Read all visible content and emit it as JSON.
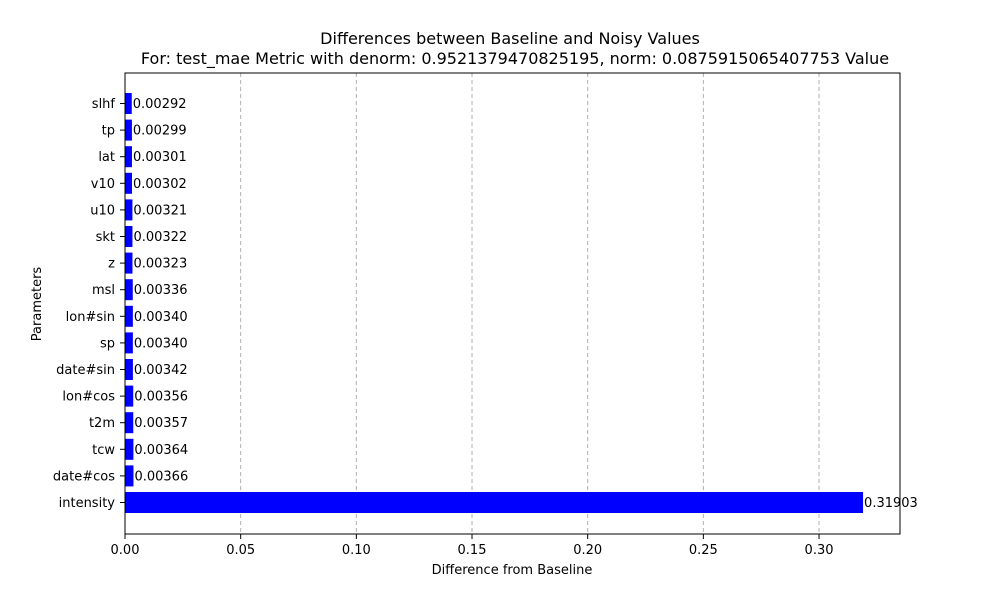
{
  "chart_data": {
    "type": "bar",
    "orientation": "horizontal",
    "title": "Differences between Baseline and Noisy Values",
    "subtitle": "For: test_mae Metric with denorm: 0.9521379470825195, norm: 0.0875915065407753 Value",
    "xlabel": "Difference from Baseline",
    "ylabel": "Parameters",
    "categories": [
      "intensity",
      "date#cos",
      "tcw",
      "t2m",
      "lon#cos",
      "date#sin",
      "sp",
      "lon#sin",
      "msl",
      "z",
      "skt",
      "u10",
      "v10",
      "lat",
      "tp",
      "slhf"
    ],
    "values": [
      0.31903,
      0.00366,
      0.00364,
      0.00357,
      0.00356,
      0.00342,
      0.0034,
      0.0034,
      0.00336,
      0.00323,
      0.00322,
      0.00321,
      0.00302,
      0.00301,
      0.00299,
      0.00292
    ],
    "value_labels": [
      "0.31903",
      "0.00366",
      "0.00364",
      "0.00357",
      "0.00356",
      "0.00342",
      "0.00340",
      "0.00340",
      "0.00336",
      "0.00323",
      "0.00322",
      "0.00321",
      "0.00302",
      "0.00301",
      "0.00299",
      "0.00292"
    ],
    "xlim": [
      0,
      0.335
    ],
    "xticks": [
      0.0,
      0.05,
      0.1,
      0.15,
      0.2,
      0.25,
      0.3
    ],
    "xtick_labels": [
      "0.00",
      "0.05",
      "0.10",
      "0.15",
      "0.20",
      "0.25",
      "0.30"
    ],
    "grid": "x-dashed",
    "bar_color": "#0000ff"
  }
}
